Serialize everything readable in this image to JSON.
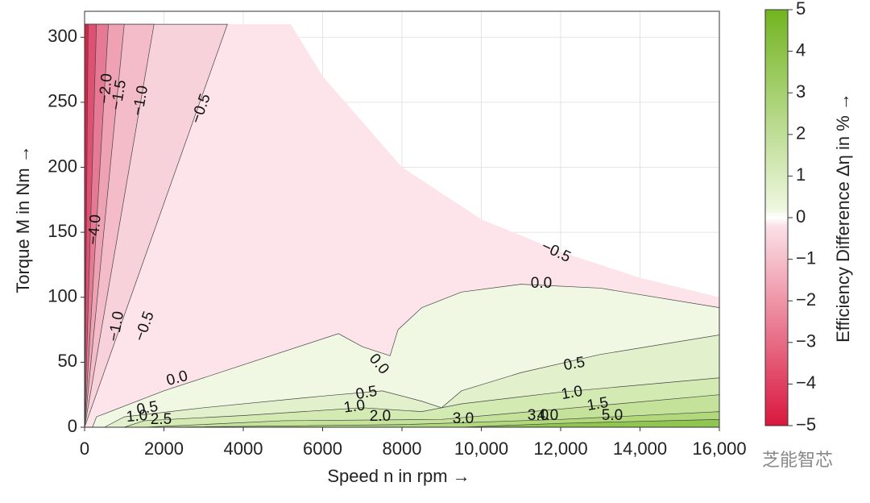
{
  "chart_data": {
    "type": "contour",
    "xlabel": "Speed n in rpm →",
    "ylabel": "Torque M in Nm →",
    "colorbar_label": "Efficiency Difference Δη in % →",
    "watermark": "芝能智芯",
    "xlim": [
      0,
      16000
    ],
    "ylim": [
      0,
      320
    ],
    "xticks": [
      0,
      2000,
      4000,
      6000,
      8000,
      {
        "value": 10000,
        "label": "10,000"
      },
      {
        "value": 12000,
        "label": "12,000"
      },
      {
        "value": 14000,
        "label": "14,000"
      },
      {
        "value": 16000,
        "label": "16,000"
      }
    ],
    "yticks": [
      0,
      50,
      100,
      150,
      200,
      250,
      300
    ],
    "clim": [
      -5,
      5
    ],
    "cticks": [
      {
        "value": -5,
        "label": "−5"
      },
      {
        "value": -4,
        "label": "−4"
      },
      {
        "value": -3,
        "label": "−3"
      },
      {
        "value": -2,
        "label": "−2"
      },
      {
        "value": -1,
        "label": "−1"
      },
      0,
      1,
      2,
      3,
      4,
      5
    ],
    "grid": true,
    "regions": [
      {
        "level": -0.5,
        "color": "#fce4ea",
        "points": [
          [
            0,
            0
          ],
          [
            0,
            310
          ],
          [
            5200,
            310
          ],
          [
            6000,
            270
          ],
          [
            8000,
            200
          ],
          [
            10000,
            160
          ],
          [
            12000,
            135
          ],
          [
            14000,
            115
          ],
          [
            16000,
            100
          ],
          [
            16000,
            0
          ]
        ]
      },
      {
        "level": 0,
        "color": "#f0f8e4",
        "points": [
          [
            200,
            0
          ],
          [
            300,
            8
          ],
          [
            2000,
            28
          ],
          [
            4000,
            48
          ],
          [
            6400,
            72
          ],
          [
            7000,
            62
          ],
          [
            7700,
            55
          ],
          [
            7900,
            75
          ],
          [
            8500,
            92
          ],
          [
            9500,
            104
          ],
          [
            11000,
            110
          ],
          [
            13000,
            107
          ],
          [
            16000,
            92
          ],
          [
            16000,
            0
          ]
        ]
      },
      {
        "level": 0.5,
        "color": "#e2f1cc",
        "points": [
          [
            500,
            0
          ],
          [
            1000,
            8
          ],
          [
            3000,
            15
          ],
          [
            6000,
            24
          ],
          [
            7500,
            28
          ],
          [
            8500,
            20
          ],
          [
            9000,
            15
          ],
          [
            9500,
            28
          ],
          [
            11000,
            42
          ],
          [
            13000,
            56
          ],
          [
            16000,
            71
          ],
          [
            16000,
            0
          ]
        ]
      },
      {
        "level": 1,
        "color": "#d4eab3",
        "points": [
          [
            1000,
            0
          ],
          [
            1500,
            5
          ],
          [
            4000,
            9
          ],
          [
            7000,
            15
          ],
          [
            8500,
            12
          ],
          [
            9500,
            18
          ],
          [
            12000,
            27
          ],
          [
            16000,
            38
          ],
          [
            16000,
            0
          ]
        ]
      },
      {
        "level": 1.5,
        "color": "#c5e29b",
        "points": [
          [
            1500,
            0
          ],
          [
            5000,
            5
          ],
          [
            9000,
            6
          ],
          [
            12000,
            14
          ],
          [
            16000,
            25
          ],
          [
            16000,
            0
          ]
        ]
      },
      {
        "level": 2,
        "color": "#b1d87b",
        "points": [
          [
            2000,
            0
          ],
          [
            8000,
            2
          ],
          [
            12000,
            6
          ],
          [
            16000,
            12
          ],
          [
            16000,
            0
          ]
        ]
      },
      {
        "level": 3,
        "color": "#8fc650",
        "points": [
          [
            9500,
            0
          ],
          [
            12000,
            3
          ],
          [
            16000,
            6
          ],
          [
            16000,
            0
          ]
        ]
      },
      {
        "level": -1,
        "color": "#f8d2da",
        "points": [
          [
            0,
            0
          ],
          [
            0,
            310
          ],
          [
            3600,
            310
          ]
        ]
      },
      {
        "level": -1.5,
        "color": "#f4bcc8",
        "points": [
          [
            0,
            0
          ],
          [
            0,
            310
          ],
          [
            1750,
            310
          ]
        ]
      },
      {
        "level": -2,
        "color": "#eea2b3",
        "points": [
          [
            0,
            0
          ],
          [
            0,
            310
          ],
          [
            1000,
            310
          ]
        ]
      },
      {
        "level": -3,
        "color": "#e67a94",
        "points": [
          [
            0,
            0
          ],
          [
            0,
            310
          ],
          [
            600,
            310
          ]
        ]
      },
      {
        "level": -4,
        "color": "#de5173",
        "points": [
          [
            0,
            0
          ],
          [
            0,
            310
          ],
          [
            300,
            310
          ]
        ]
      },
      {
        "level": -5,
        "color": "#d42548",
        "points": [
          [
            0,
            0
          ],
          [
            0,
            310
          ],
          [
            90,
            310
          ]
        ]
      }
    ],
    "contour_labels": [
      "−0.5",
      "−0.5",
      "0.0",
      "0.0",
      "0.0",
      "0.5",
      "0.5",
      "0.5",
      "1.0",
      "1.0",
      "1.0",
      "1.5",
      "2.0",
      "2.5",
      "3.0",
      "3.0",
      "4.0",
      "5.0",
      "−1.0",
      "−1.5",
      "−2.0",
      "−4.0",
      "−0.5",
      "−1.0"
    ]
  }
}
